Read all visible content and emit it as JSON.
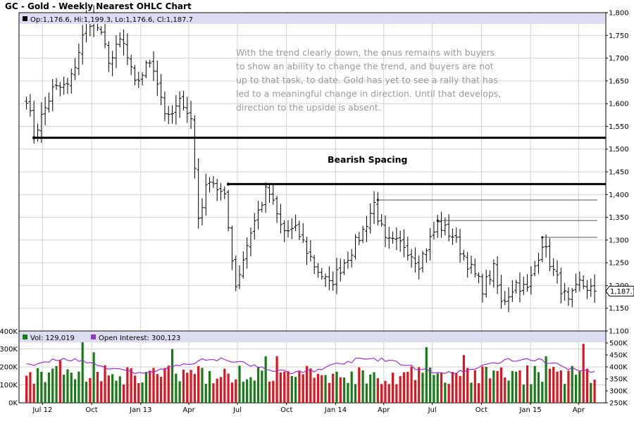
{
  "chart_data": [
    {
      "type": "ohlc",
      "title": "GC - Gold - Weekly Nearest OHLC Chart",
      "legend": "Op:1,176.6, Hi:1,199.3, Lo:1,176.6, Cl:1,187.7",
      "last_price_label": "1,187.7",
      "last_price": 1187.7,
      "ylim": [
        1100,
        1800
      ],
      "y_ticks": [
        1100,
        1150,
        1200,
        1250,
        1300,
        1350,
        1400,
        1450,
        1500,
        1550,
        1600,
        1650,
        1700,
        1750,
        1800
      ],
      "y_tick_labels": [
        "1,100",
        "1,150",
        "1,200",
        "1,250",
        "1,300",
        "1,350",
        "1,400",
        "1,450",
        "1,500",
        "1,550",
        "1,600",
        "1,650",
        "1,700",
        "1,750",
        "1,800"
      ],
      "key_points": [
        {
          "x": "2012-06-01",
          "y": 1615
        },
        {
          "x": "2012-06-15",
          "y": 1530
        },
        {
          "x": "2012-07-20",
          "y": 1630
        },
        {
          "x": "2012-08-20",
          "y": 1640
        },
        {
          "x": "2012-09-21",
          "y": 1775
        },
        {
          "x": "2012-10-05",
          "y": 1790
        },
        {
          "x": "2012-11-05",
          "y": 1690
        },
        {
          "x": "2012-11-26",
          "y": 1745
        },
        {
          "x": "2012-12-21",
          "y": 1640
        },
        {
          "x": "2013-01-21",
          "y": 1700
        },
        {
          "x": "2013-02-20",
          "y": 1560
        },
        {
          "x": "2013-03-20",
          "y": 1610
        },
        {
          "x": "2013-04-05",
          "y": 1565
        },
        {
          "x": "2013-04-19",
          "y": 1350
        },
        {
          "x": "2013-05-10",
          "y": 1440
        },
        {
          "x": "2013-06-07",
          "y": 1390
        },
        {
          "x": "2013-06-28",
          "y": 1200
        },
        {
          "x": "2013-07-26",
          "y": 1320
        },
        {
          "x": "2013-08-26",
          "y": 1415
        },
        {
          "x": "2013-09-23",
          "y": 1320
        },
        {
          "x": "2013-10-21",
          "y": 1320
        },
        {
          "x": "2013-11-22",
          "y": 1245
        },
        {
          "x": "2013-12-20",
          "y": 1200
        },
        {
          "x": "2014-01-24",
          "y": 1265
        },
        {
          "x": "2014-02-21",
          "y": 1320
        },
        {
          "x": "2014-03-14",
          "y": 1380
        },
        {
          "x": "2014-04-04",
          "y": 1295
        },
        {
          "x": "2014-05-09",
          "y": 1290
        },
        {
          "x": "2014-06-06",
          "y": 1250
        },
        {
          "x": "2014-07-11",
          "y": 1335
        },
        {
          "x": "2014-08-08",
          "y": 1310
        },
        {
          "x": "2014-09-12",
          "y": 1235
        },
        {
          "x": "2014-10-03",
          "y": 1195
        },
        {
          "x": "2014-10-24",
          "y": 1235
        },
        {
          "x": "2014-11-07",
          "y": 1160
        },
        {
          "x": "2014-12-05",
          "y": 1205
        },
        {
          "x": "2014-12-26",
          "y": 1190
        },
        {
          "x": "2015-01-23",
          "y": 1295
        },
        {
          "x": "2015-02-13",
          "y": 1230
        },
        {
          "x": "2015-03-13",
          "y": 1160
        },
        {
          "x": "2015-04-03",
          "y": 1205
        },
        {
          "x": "2015-05-01",
          "y": 1188
        }
      ],
      "annotations": [
        {
          "kind": "horizontal-line",
          "y": 1525,
          "x_start": "2012-06-15"
        },
        {
          "kind": "horizontal-line",
          "y": 1423,
          "x_start": "2013-06-14"
        },
        {
          "kind": "horizontal-line",
          "y": 1388,
          "x_start": "2014-03-21"
        },
        {
          "kind": "horizontal-line",
          "y": 1343,
          "x_start": "2014-07-11"
        },
        {
          "kind": "horizontal-line",
          "y": 1306,
          "x_start": "2015-01-23"
        }
      ],
      "note_lines": [
        "With the trend clearly down, the onus remains with buyers",
        "to show an ability to change the trend, and buyers are not",
        "up to that task, to date.  Gold has yet to see a rally that has",
        "led to a meaningful change in direction.  Until that develops,",
        "direction to the upside is absent."
      ],
      "bearish_label": "Bearish Spacing"
    },
    {
      "type": "bar",
      "legend_volume": "Vol: 129,019",
      "legend_oi": "Open Interest: 300,123",
      "volume_ylim": [
        0,
        400000
      ],
      "volume_ticks": [
        0,
        100000,
        200000,
        300000,
        400000
      ],
      "volume_tick_labels": [
        "0K",
        "100K",
        "200K",
        "300K",
        "400K"
      ],
      "oi_ylim": [
        250000,
        550000
      ],
      "oi_ticks": [
        250000,
        300000,
        350000,
        400000,
        450000,
        500000
      ],
      "oi_tick_labels": [
        "250K",
        "300K",
        "350K",
        "400K",
        "450K",
        "500K"
      ],
      "colors": {
        "up": "#1a7a1a",
        "down": "#e0141e",
        "oi": "#9b30d0"
      }
    }
  ],
  "x_axis": {
    "labels": [
      "Jul 12",
      "Oct",
      "Jan 13",
      "Apr",
      "Jul",
      "Oct",
      "Jan 14",
      "Apr",
      "Jul",
      "Oct",
      "Jan 15",
      "Apr"
    ],
    "dates": [
      "2012-07-01",
      "2012-10-01",
      "2013-01-01",
      "2013-04-01",
      "2013-07-01",
      "2013-10-01",
      "2014-01-01",
      "2014-04-01",
      "2014-07-01",
      "2014-10-01",
      "2015-01-01",
      "2015-04-01"
    ]
  }
}
